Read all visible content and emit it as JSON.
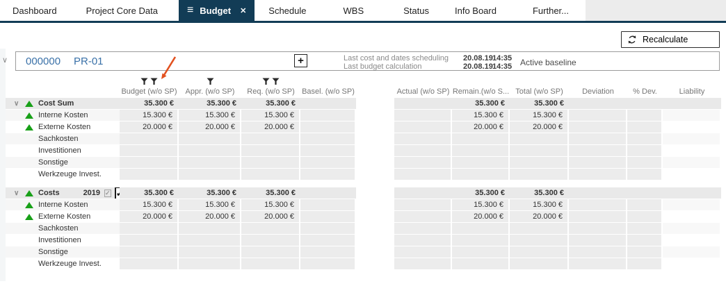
{
  "colors": {
    "accent_navy": "#123c56",
    "link_blue": "#3a71a8",
    "positive_green": "#18a018",
    "annotation_orange": "#e2511f",
    "cell_gray": "#ececec"
  },
  "nav": {
    "tabs": [
      {
        "label": "Dashboard",
        "active": false
      },
      {
        "label": "Project Core Data",
        "active": false
      },
      {
        "label": "Budget",
        "active": true
      },
      {
        "label": "Schedule",
        "active": false
      },
      {
        "label": "WBS",
        "active": false
      },
      {
        "label": "Status",
        "active": false
      },
      {
        "label": "Info Board",
        "active": false
      },
      {
        "label": "Further...",
        "active": false
      }
    ]
  },
  "icons": {
    "hamburger": "≡",
    "close": "✕",
    "chevron_down": "∨",
    "plus": "+",
    "check": "✓"
  },
  "toolbar": {
    "recalculate": "Recalculate"
  },
  "project": {
    "number": "000000",
    "code": "PR-01",
    "info_rows": [
      {
        "label": "Last cost and dates scheduling",
        "date": "20.08.19",
        "time": "14:35"
      },
      {
        "label": "Last budget calculation",
        "date": "20.08.19",
        "time": "14:35"
      }
    ],
    "baseline_status": "Active baseline"
  },
  "table": {
    "columns_left": [
      "Budget (w/o SP)",
      "Appr. (w/o SP)",
      "Req. (w/o SP)",
      "Basel. (w/o SP)"
    ],
    "columns_right": [
      "Actual (w/o SP)",
      "Remain.(w/o S...",
      "Total (w/o SP)",
      "Deviation",
      "% Dev.",
      "Liability"
    ],
    "filter_icon_counts": [
      2,
      1,
      2,
      0
    ],
    "groups": [
      {
        "header": {
          "label": "Cost Sum",
          "year": "",
          "checkboxes": false,
          "left": [
            "35.300 €",
            "35.300 €",
            "35.300 €",
            ""
          ],
          "right": [
            "",
            "35.300 €",
            "35.300 €",
            "",
            "",
            ""
          ]
        },
        "rows": [
          {
            "label": "Interne Kosten",
            "flag": true,
            "left": [
              "15.300 €",
              "15.300 €",
              "15.300 €",
              ""
            ],
            "right": [
              "",
              "15.300 €",
              "15.300 €",
              "",
              "",
              ""
            ]
          },
          {
            "label": "Externe Kosten",
            "flag": true,
            "left": [
              "20.000 €",
              "20.000 €",
              "20.000 €",
              ""
            ],
            "right": [
              "",
              "20.000 €",
              "20.000 €",
              "",
              "",
              ""
            ]
          },
          {
            "label": "Sachkosten",
            "flag": false,
            "left": [
              "",
              "",
              "",
              ""
            ],
            "right": [
              "",
              "",
              "",
              "",
              "",
              ""
            ]
          },
          {
            "label": "Investitionen",
            "flag": false,
            "left": [
              "",
              "",
              "",
              ""
            ],
            "right": [
              "",
              "",
              "",
              "",
              "",
              ""
            ]
          },
          {
            "label": "Sonstige",
            "flag": false,
            "left": [
              "",
              "",
              "",
              ""
            ],
            "right": [
              "",
              "",
              "",
              "",
              "",
              ""
            ]
          },
          {
            "label": "Werkzeuge Invest.",
            "flag": false,
            "left": [
              "",
              "",
              "",
              ""
            ],
            "right": [
              "",
              "",
              "",
              "",
              "",
              ""
            ]
          }
        ]
      },
      {
        "header": {
          "label": "Costs",
          "year": "2019",
          "checkboxes": true,
          "left": [
            "35.300 €",
            "35.300 €",
            "35.300 €",
            ""
          ],
          "right": [
            "",
            "35.300 €",
            "35.300 €",
            "",
            "",
            ""
          ]
        },
        "rows": [
          {
            "label": "Interne Kosten",
            "flag": true,
            "left": [
              "15.300 €",
              "15.300 €",
              "15.300 €",
              ""
            ],
            "right": [
              "",
              "15.300 €",
              "15.300 €",
              "",
              "",
              ""
            ]
          },
          {
            "label": "Externe Kosten",
            "flag": true,
            "left": [
              "20.000 €",
              "20.000 €",
              "20.000 €",
              ""
            ],
            "right": [
              "",
              "20.000 €",
              "20.000 €",
              "",
              "",
              ""
            ]
          },
          {
            "label": "Sachkosten",
            "flag": false,
            "left": [
              "",
              "",
              "",
              ""
            ],
            "right": [
              "",
              "",
              "",
              "",
              "",
              ""
            ]
          },
          {
            "label": "Investitionen",
            "flag": false,
            "left": [
              "",
              "",
              "",
              ""
            ],
            "right": [
              "",
              "",
              "",
              "",
              "",
              ""
            ]
          },
          {
            "label": "Sonstige",
            "flag": false,
            "left": [
              "",
              "",
              "",
              ""
            ],
            "right": [
              "",
              "",
              "",
              "",
              "",
              ""
            ]
          },
          {
            "label": "Werkzeuge Invest.",
            "flag": false,
            "left": [
              "",
              "",
              "",
              ""
            ],
            "right": [
              "",
              "",
              "",
              "",
              "",
              ""
            ]
          }
        ]
      }
    ]
  }
}
